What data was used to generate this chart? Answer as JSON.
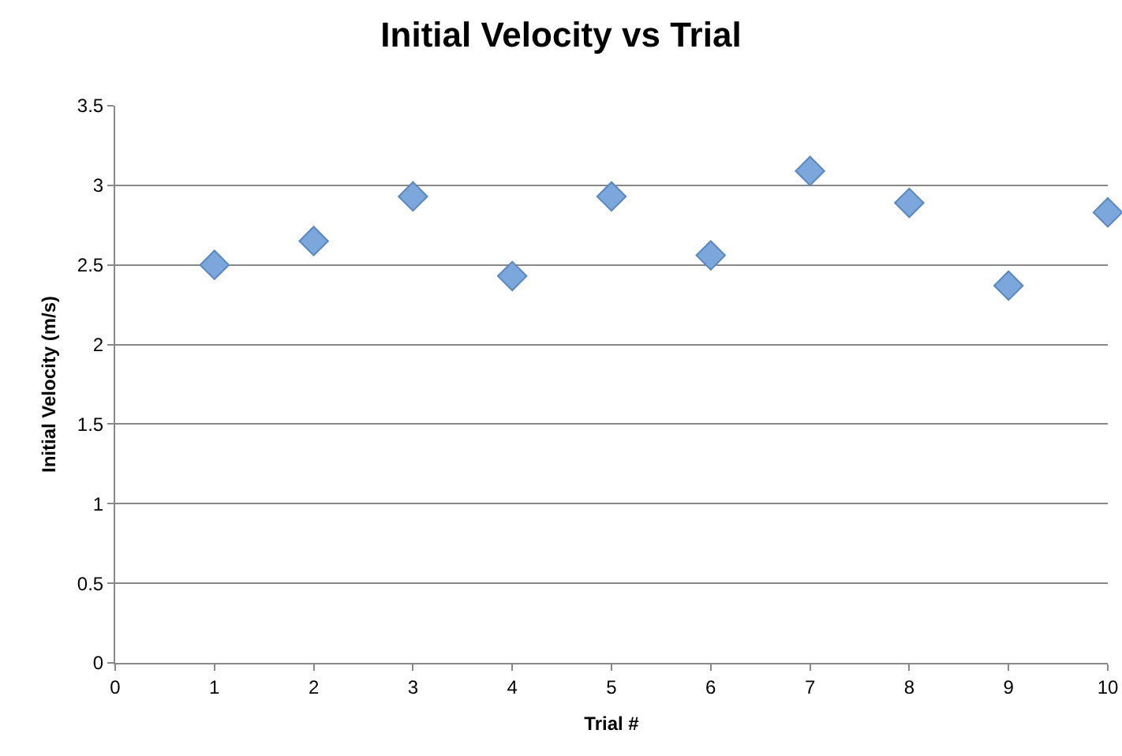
{
  "chart_data": {
    "type": "scatter",
    "title": "Initial Velocity vs Trial",
    "xlabel": "Trial #",
    "ylabel": "Initial Velocity (m/s)",
    "x": [
      1,
      2,
      3,
      4,
      5,
      6,
      7,
      8,
      9,
      10
    ],
    "values": [
      2.5,
      2.65,
      2.93,
      2.43,
      2.93,
      2.56,
      3.09,
      2.89,
      2.37,
      2.83
    ],
    "color": "#7ba7dc",
    "marker": "diamond",
    "grid": "y",
    "legend": false,
    "xlim": [
      0,
      10
    ],
    "xticks": [
      0,
      1,
      2,
      3,
      4,
      5,
      6,
      7,
      8,
      9,
      10
    ],
    "ylim": [
      0,
      3.5
    ],
    "yticks": [
      0,
      0.5,
      1,
      1.5,
      2,
      2.5,
      3,
      3.5
    ]
  }
}
